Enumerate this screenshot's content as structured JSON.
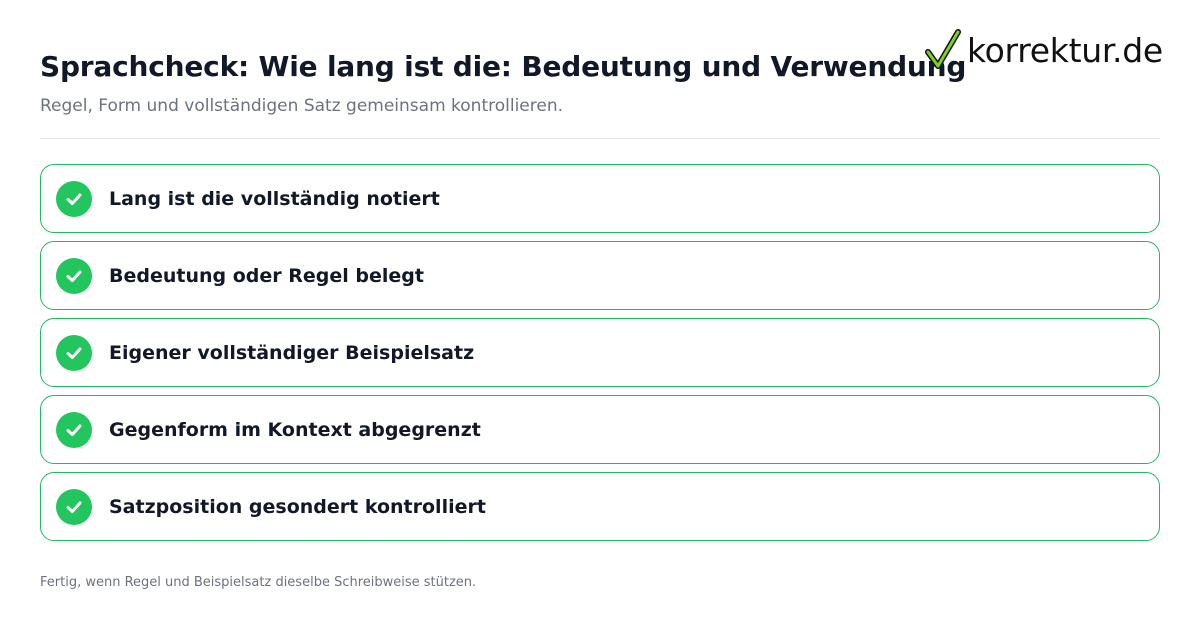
{
  "header": {
    "title": "Sprachcheck: Wie lang ist die: Bedeutung und Verwendung",
    "subtitle": "Regel, Form und vollständigen Satz gemeinsam kontrollieren."
  },
  "logo": {
    "text": "korrektur.de",
    "icon": "checkmark-icon"
  },
  "checklist": {
    "icon": "check-circle-icon",
    "items": [
      {
        "label": "Lang ist die vollständig notiert",
        "checked": true
      },
      {
        "label": "Bedeutung oder Regel belegt",
        "checked": true
      },
      {
        "label": "Eigener vollständiger Beispielsatz",
        "checked": true
      },
      {
        "label": "Gegenform im Kontext abgegrenzt",
        "checked": true
      },
      {
        "label": "Satzposition gesondert kontrolliert",
        "checked": true
      }
    ]
  },
  "footer": {
    "note": "Fertig, wenn Regel und Beispielsatz dieselbe Schreibweise stützen."
  },
  "colors": {
    "accent": "#22c55e",
    "border": "#22b864",
    "text": "#111827",
    "muted": "#6b7280"
  }
}
